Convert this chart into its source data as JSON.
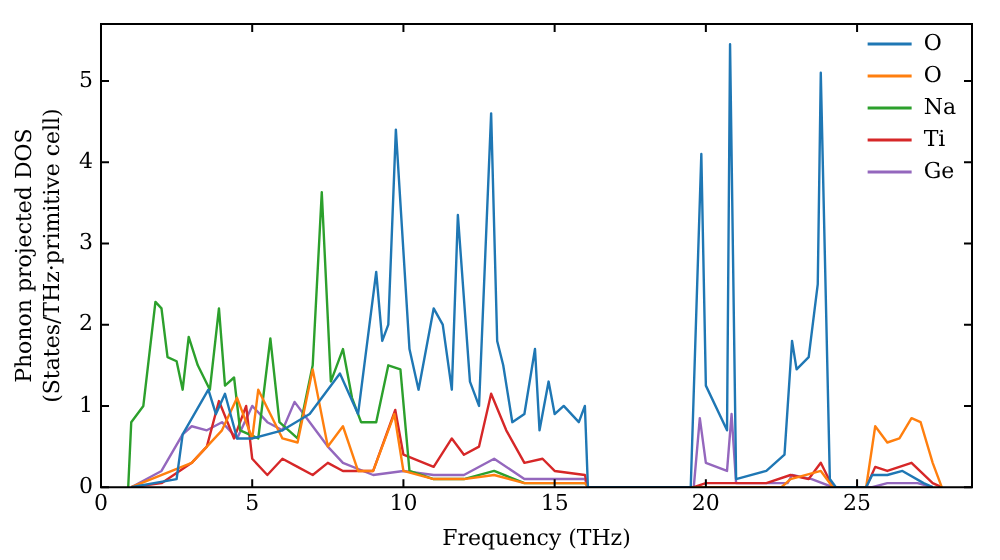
{
  "chart_data": {
    "type": "line",
    "xlabel": "Frequency (THz)",
    "ylabel": "Phonon projected DOS\n(States/THz·primitive cell)",
    "xlim": [
      0,
      28.8
    ],
    "ylim": [
      0,
      5.7
    ],
    "xticks": [
      0,
      5,
      10,
      15,
      20,
      25
    ],
    "yticks": [
      0,
      1,
      2,
      3,
      4,
      5
    ],
    "legend": "top right",
    "marker": "none",
    "line_style": "solid",
    "series": [
      {
        "name": "O",
        "color": "#1f77b4",
        "x": [
          1,
          2.5,
          2.7,
          3.55,
          3.8,
          4.1,
          4.5,
          5,
          6,
          6.9,
          7.9,
          8.5,
          9.1,
          9.3,
          9.5,
          9.75,
          10.2,
          10.5,
          11,
          11.3,
          11.6,
          11.8,
          12.2,
          12.5,
          12.9,
          13.1,
          13.3,
          13.6,
          14,
          14.35,
          14.5,
          14.8,
          15,
          15.3,
          15.8,
          16,
          16.1,
          19.5,
          19.85,
          20,
          20.7,
          20.8,
          21,
          22,
          22.6,
          22.85,
          23,
          23.4,
          23.7,
          23.8,
          24.1,
          24.3,
          25.3,
          25.5,
          26,
          26.5,
          27.2,
          27.5
        ],
        "values": [
          0,
          0.1,
          0.65,
          1.2,
          0.9,
          1.15,
          0.6,
          0.6,
          0.7,
          0.9,
          1.4,
          0.9,
          2.65,
          1.8,
          2.0,
          4.4,
          1.7,
          1.2,
          2.2,
          2.0,
          1.2,
          3.35,
          1.3,
          1.0,
          4.6,
          1.8,
          1.5,
          0.8,
          0.9,
          1.7,
          0.7,
          1.3,
          0.9,
          1.0,
          0.8,
          1.0,
          0,
          0,
          4.1,
          1.25,
          0.7,
          5.45,
          0.1,
          0.2,
          0.4,
          1.8,
          1.45,
          1.6,
          2.5,
          5.1,
          0.1,
          0,
          0,
          0.15,
          0.15,
          0.2,
          0.05,
          0
        ]
      },
      {
        "name": "O",
        "color": "#ff7f0e",
        "x": [
          1,
          3,
          4,
          4.5,
          5,
          5.2,
          6,
          6.5,
          7.0,
          7.5,
          8,
          8.5,
          9,
          9.7,
          10,
          11,
          12,
          13,
          14,
          16,
          16.1,
          22.5,
          22.8,
          23.8,
          24.2,
          25.3,
          25.6,
          26,
          26.4,
          26.8,
          27.1,
          27.5,
          27.8
        ],
        "values": [
          0,
          0.3,
          0.7,
          1.1,
          0.6,
          1.2,
          0.6,
          0.55,
          1.45,
          0.5,
          0.75,
          0.2,
          0.2,
          0.9,
          0.2,
          0.1,
          0.1,
          0.15,
          0.05,
          0.05,
          0,
          0,
          0.1,
          0.2,
          0,
          0,
          0.75,
          0.55,
          0.6,
          0.85,
          0.8,
          0.3,
          0
        ]
      },
      {
        "name": "Na",
        "color": "#2ca02c",
        "x": [
          0.9,
          1.0,
          1.4,
          1.8,
          2.0,
          2.2,
          2.5,
          2.7,
          2.9,
          3.2,
          3.6,
          3.9,
          4.1,
          4.4,
          4.6,
          5.2,
          5.6,
          5.9,
          6.5,
          7.0,
          7.3,
          7.6,
          8.0,
          8.3,
          8.6,
          9.1,
          9.5,
          9.9,
          10.2,
          11,
          12,
          13,
          14,
          16
        ],
        "values": [
          0,
          0.8,
          1.0,
          2.28,
          2.2,
          1.6,
          1.55,
          1.2,
          1.85,
          1.5,
          1.2,
          2.2,
          1.25,
          1.35,
          0.7,
          0.6,
          1.83,
          0.8,
          0.6,
          1.5,
          3.63,
          1.3,
          1.7,
          1.1,
          0.8,
          0.8,
          1.5,
          1.45,
          0.2,
          0.1,
          0.1,
          0.2,
          0.05,
          0.05
        ]
      },
      {
        "name": "Ti",
        "color": "#d62728",
        "x": [
          1,
          2,
          3,
          3.5,
          3.9,
          4.4,
          4.8,
          5.0,
          5.5,
          6.0,
          6.5,
          7.0,
          7.5,
          8,
          9,
          9.73,
          10,
          11,
          11.6,
          12,
          12.5,
          12.9,
          13.4,
          14,
          14.6,
          15,
          16,
          16.1,
          19.6,
          20,
          22,
          22.8,
          23.4,
          23.8,
          24.2,
          25.3,
          25.6,
          26,
          26.8,
          27.5,
          27.8
        ],
        "values": [
          0,
          0.05,
          0.3,
          0.5,
          1.06,
          0.6,
          1.0,
          0.35,
          0.15,
          0.35,
          0.25,
          0.15,
          0.3,
          0.2,
          0.2,
          0.95,
          0.4,
          0.25,
          0.6,
          0.4,
          0.5,
          1.15,
          0.7,
          0.3,
          0.35,
          0.2,
          0.15,
          0,
          0,
          0.05,
          0.05,
          0.15,
          0.1,
          0.3,
          0,
          0,
          0.25,
          0.2,
          0.3,
          0.05,
          0
        ]
      },
      {
        "name": "Ge",
        "color": "#9467bd",
        "x": [
          1,
          2,
          2.7,
          3,
          3.5,
          4,
          4.5,
          5,
          5.5,
          6,
          6.4,
          7,
          7.5,
          8,
          9,
          10,
          11,
          12,
          13,
          14,
          15,
          16,
          16.1,
          19.6,
          19.8,
          20,
          20.7,
          20.85,
          21,
          22.7,
          22.85,
          23.5,
          24.2,
          25.5,
          26,
          27,
          27.5
        ],
        "values": [
          0,
          0.2,
          0.65,
          0.75,
          0.7,
          0.8,
          0.6,
          1.0,
          0.8,
          0.7,
          1.05,
          0.75,
          0.5,
          0.3,
          0.15,
          0.2,
          0.15,
          0.15,
          0.35,
          0.1,
          0.1,
          0.1,
          0,
          0,
          0.85,
          0.3,
          0.2,
          0.9,
          0.05,
          0.05,
          0.15,
          0.1,
          0,
          0,
          0.05,
          0.05,
          0
        ]
      }
    ]
  }
}
